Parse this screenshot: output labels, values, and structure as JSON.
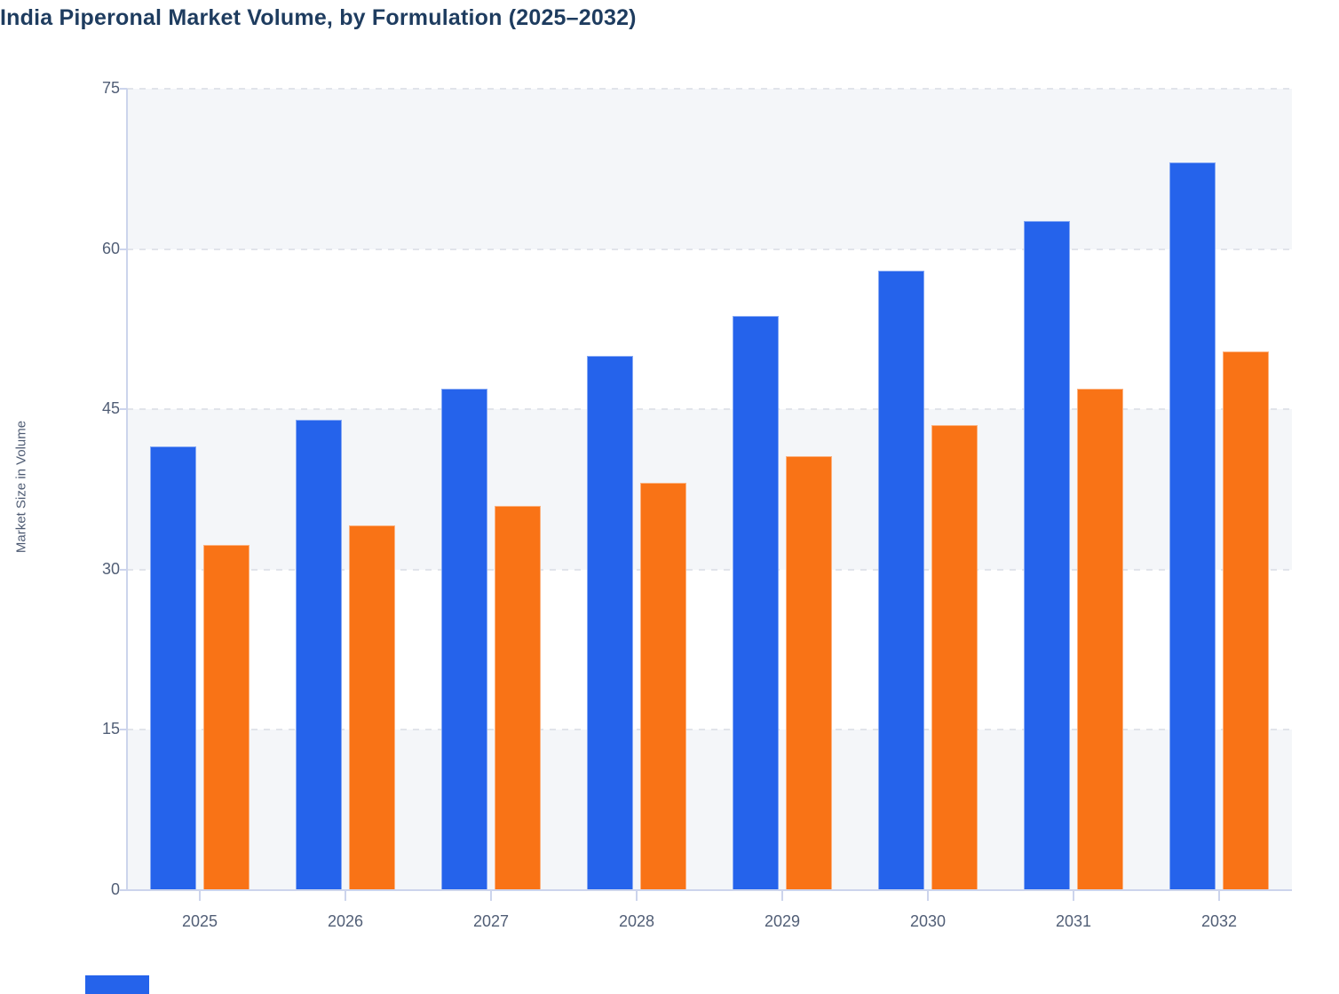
{
  "title": "India Piperonal Market Volume, by Formulation (2025–2032)",
  "y_axis": {
    "label": "Market Size in Volume",
    "ticks": [
      75,
      60,
      45,
      30,
      15,
      0
    ],
    "max": 75
  },
  "x_axis": {
    "categories": [
      "2025",
      "2026",
      "2027",
      "2028",
      "2029",
      "2030",
      "2031",
      "2032"
    ]
  },
  "chart_data": {
    "type": "bar",
    "title": "India Piperonal Market Volume, by Formulation (2025–2032)",
    "xlabel": "",
    "ylabel": "Market Size in Volume",
    "ylim": [
      0,
      75
    ],
    "categories": [
      "2025",
      "2026",
      "2027",
      "2028",
      "2029",
      "2030",
      "2031",
      "2032"
    ],
    "series": [
      {
        "name": "",
        "color": "#2563eb",
        "values": [
          41.5,
          44.0,
          46.9,
          50.0,
          53.7,
          58.0,
          62.6,
          68.1
        ]
      },
      {
        "name": "",
        "color": "#f97316",
        "values": [
          32.3,
          34.1,
          36.0,
          38.1,
          40.6,
          43.5,
          46.9,
          50.4
        ]
      }
    ],
    "grid": "horizontal dashed lines with alternating shaded bands every 15 units",
    "legend_position": "bottom, cut off at image edge (only top of first blue swatch visible)"
  },
  "colors": {
    "bar_blue": "#2563eb",
    "bar_orange": "#f97316",
    "title_text": "#1e3c5f",
    "axis_text": "#515e76",
    "axis_line": "#ccd4ec",
    "gridline": "#e1e4ea",
    "band_fill": "#f4f6f9",
    "background": "#ffffff"
  }
}
